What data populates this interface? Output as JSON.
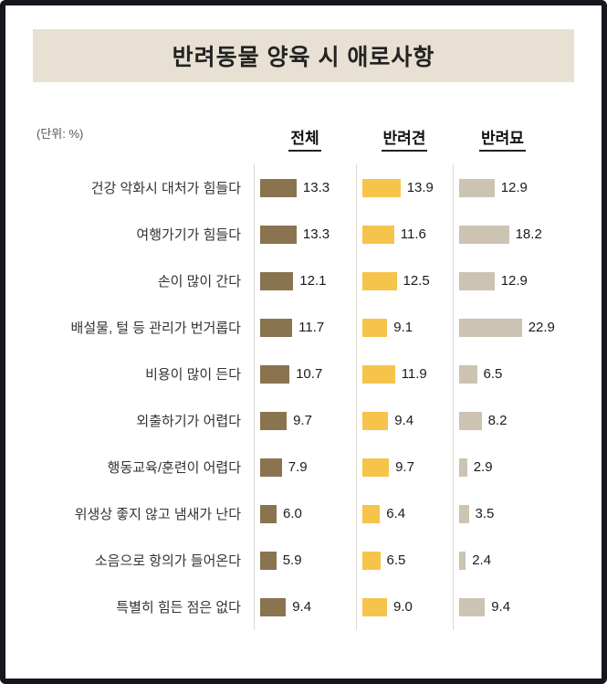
{
  "frame": {
    "border_color": "#16161e",
    "background": "#ffffff"
  },
  "title": "반려동물 양육 시 애로사항",
  "title_banner_bg": "#e7e0d3",
  "unit_label": "(단위: %)",
  "chart_data": {
    "type": "bar",
    "orientation": "horizontal",
    "value_unit": "%",
    "xlim": [
      0,
      25
    ],
    "categories": [
      "건강 악화시 대처가 힘들다",
      "여행가기가 힘들다",
      "손이 많이 간다",
      "배설물, 털 등 관리가 번거롭다",
      "비용이 많이 든다",
      "외출하기가 어렵다",
      "행동교육/훈련이 어렵다",
      "위생상 좋지 않고 냄새가 난다",
      "소음으로 항의가 들어온다",
      "특별히 힘든 점은 없다"
    ],
    "series": [
      {
        "name": "전체",
        "color": "#8a7450",
        "values": [
          13.3,
          13.3,
          12.1,
          11.7,
          10.7,
          9.7,
          7.9,
          6.0,
          5.9,
          9.4
        ]
      },
      {
        "name": "반려견",
        "color": "#f6c44b",
        "values": [
          13.9,
          11.6,
          12.5,
          9.1,
          11.9,
          9.4,
          9.7,
          6.4,
          6.5,
          9.0
        ]
      },
      {
        "name": "반려묘",
        "color": "#ccc3b3",
        "values": [
          12.9,
          18.2,
          12.9,
          22.9,
          6.5,
          8.2,
          2.9,
          3.5,
          2.4,
          9.4
        ]
      }
    ]
  }
}
